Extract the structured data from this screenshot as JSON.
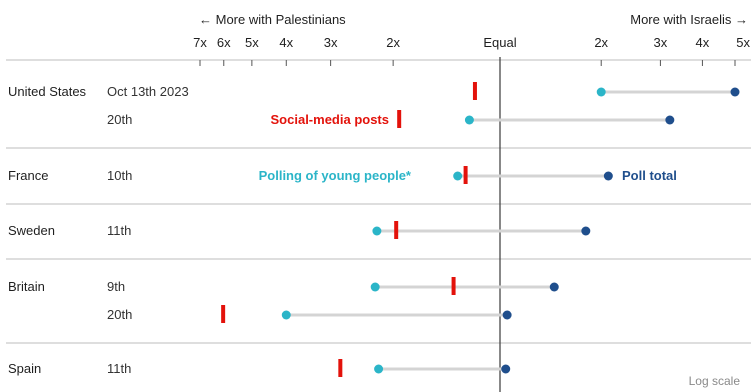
{
  "chart_data": {
    "type": "dot-range",
    "scale_note": "Log scale",
    "direction_labels": {
      "left": "← More with Palestinians",
      "right": "More with Israelis →"
    },
    "axis": {
      "scale": "log",
      "center_label": "Equal",
      "ticks": [
        {
          "label": "7x",
          "value": 0.142857
        },
        {
          "label": "6x",
          "value": 0.166667
        },
        {
          "label": "5x",
          "value": 0.2
        },
        {
          "label": "4x",
          "value": 0.25
        },
        {
          "label": "3x",
          "value": 0.333333
        },
        {
          "label": "2x",
          "value": 0.5
        },
        {
          "label": "Equal",
          "value": 1
        },
        {
          "label": "2x",
          "value": 2
        },
        {
          "label": "3x",
          "value": 3
        },
        {
          "label": "4x",
          "value": 4
        },
        {
          "label": "5x",
          "value": 5
        }
      ]
    },
    "series": [
      {
        "name": "Social-media posts",
        "color": "#e3120b"
      },
      {
        "name": "Polling of young people*",
        "color": "#2bb5c8"
      },
      {
        "name": "Poll total",
        "color": "#1f4e8c"
      }
    ],
    "rows": [
      {
        "country": "United States",
        "date": "Oct 13th 2023",
        "social": 0.85,
        "young": 2.0,
        "total": 5.0
      },
      {
        "country": "",
        "date": "20th",
        "social": 0.52,
        "young": 0.82,
        "total": 3.2
      },
      {
        "country": "France",
        "date": "10th",
        "social": 0.8,
        "young": 0.76,
        "total": 2.1
      },
      {
        "country": "Sweden",
        "date": "11th",
        "social": 0.51,
        "young": 0.45,
        "total": 1.8
      },
      {
        "country": "Britain",
        "date": "9th",
        "social": 0.74,
        "young": 0.445,
        "total": 1.45
      },
      {
        "country": "",
        "date": "20th",
        "social": 0.166,
        "young": 0.25,
        "total": 1.05
      },
      {
        "country": "Spain",
        "date": "11th",
        "social": 0.355,
        "young": 0.455,
        "total": 1.04
      }
    ]
  }
}
